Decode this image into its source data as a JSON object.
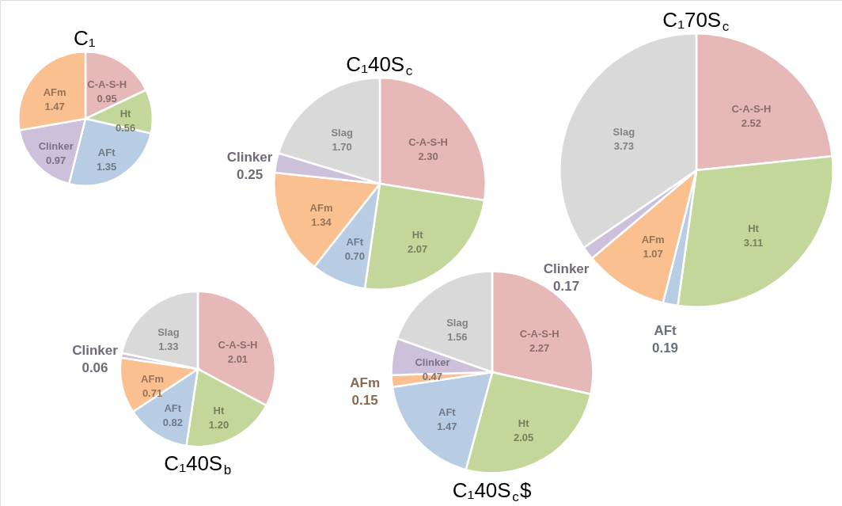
{
  "chart_data": [
    {
      "type": "pie",
      "title": "C₁",
      "categories": [
        "C-A-S-H",
        "Ht",
        "AFt",
        "Clinker",
        "AFm"
      ],
      "values": [
        0.95,
        0.56,
        1.35,
        0.97,
        1.47
      ],
      "colors": [
        "#e6b8b7",
        "#c4d79b",
        "#b8cce4",
        "#ccc0da",
        "#fac090"
      ],
      "value_labels": [
        "0.95",
        "0.56",
        "1.35",
        "0.97",
        "1.47"
      ]
    },
    {
      "type": "pie",
      "title": "C₁40S$_{c}$",
      "categories": [
        "C-A-S-H",
        "Ht",
        "AFt",
        "AFm",
        "Clinker",
        "Slag"
      ],
      "values": [
        2.3,
        2.07,
        0.7,
        1.34,
        0.25,
        1.7
      ],
      "colors": [
        "#e6b8b7",
        "#c4d79b",
        "#b8cce4",
        "#fac090",
        "#ccc0da",
        "#d9d9d9"
      ],
      "value_labels": [
        "2.30",
        "2.07",
        "0.70",
        "1.34",
        "0.25",
        "1.70"
      ]
    },
    {
      "type": "pie",
      "title": "C₁70S$_{c}$",
      "categories": [
        "C-A-S-H",
        "Ht",
        "AFt",
        "AFm",
        "Clinker",
        "Slag"
      ],
      "values": [
        2.52,
        3.11,
        0.19,
        1.07,
        0.17,
        3.73
      ],
      "colors": [
        "#e6b8b7",
        "#c4d79b",
        "#b8cce4",
        "#fac090",
        "#ccc0da",
        "#d9d9d9"
      ],
      "value_labels": [
        "2.52",
        "3.11",
        "0.19",
        "1.07",
        "0.17",
        "3.73"
      ]
    },
    {
      "type": "pie",
      "title": "C₁40S$_{b}$",
      "categories": [
        "C-A-S-H",
        "Ht",
        "AFt",
        "AFm",
        "Clinker",
        "Slag"
      ],
      "values": [
        2.01,
        1.2,
        0.82,
        0.71,
        0.06,
        1.33
      ],
      "colors": [
        "#e6b8b7",
        "#c4d79b",
        "#b8cce4",
        "#fac090",
        "#ccc0da",
        "#d9d9d9"
      ],
      "value_labels": [
        "2.01",
        "1.20",
        "0.82",
        "0.71",
        "0.06",
        "1.33"
      ]
    },
    {
      "type": "pie",
      "title": "C₁40S$_{c}$$",
      "categories": [
        "C-A-S-H",
        "Ht",
        "AFt",
        "AFm",
        "Clinker",
        "Slag"
      ],
      "values": [
        2.27,
        2.05,
        1.47,
        0.15,
        0.47,
        1.56
      ],
      "colors": [
        "#e6b8b7",
        "#c4d79b",
        "#b8cce4",
        "#fac090",
        "#ccc0da",
        "#d9d9d9"
      ],
      "value_labels": [
        "2.27",
        "2.05",
        "1.47",
        "0.15",
        "0.47",
        "1.56"
      ]
    }
  ]
}
